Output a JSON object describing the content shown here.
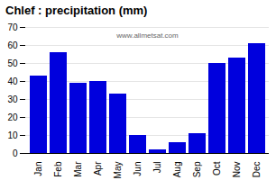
{
  "chart_data": {
    "type": "bar",
    "title": "Chlef : precipitation (mm)",
    "categories": [
      "Jan",
      "Feb",
      "Mar",
      "Apr",
      "May",
      "Jun",
      "Jul",
      "Aug",
      "Sep",
      "Oct",
      "Nov",
      "Dec"
    ],
    "values": [
      43,
      56,
      39,
      40,
      33,
      10,
      2,
      6,
      11,
      50,
      53,
      61
    ],
    "color": "#0000DD",
    "ylim": [
      0,
      70
    ],
    "yticks": [
      0,
      10,
      20,
      30,
      40,
      50,
      60,
      70
    ],
    "grid": true,
    "annotations": [
      "www.allmetsat.com"
    ]
  }
}
